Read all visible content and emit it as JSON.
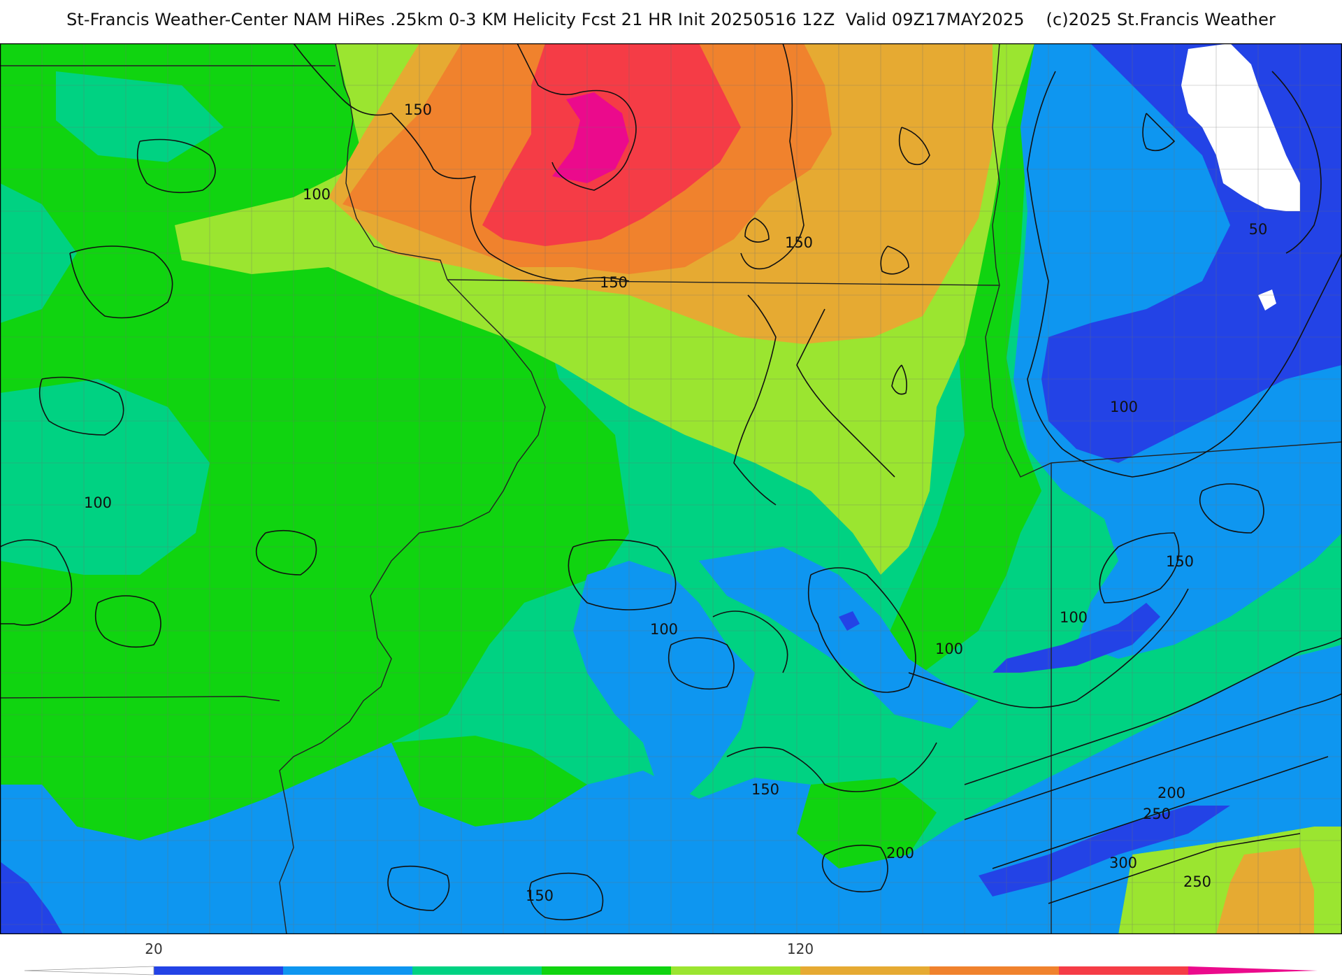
{
  "title": "St-Francis Weather-Center NAM HiRes .25km 0-3 KM Helicity Fcst 21 HR Init 20250516 12Z  Valid 09Z17MAY2025    (c)2025 St.Francis Weather",
  "colors": {
    "white": "#ffffff",
    "blue_dark": "#2343e6",
    "blue": "#0e96f0",
    "teal": "#00d282",
    "green": "#10d410",
    "lime": "#9be530",
    "gold": "#e6aa32",
    "orange": "#f0822d",
    "red": "#f53c46",
    "magenta": "#eb0a8c",
    "contour": "#111111",
    "border": "#555555"
  },
  "colorbar": {
    "tick_labels": [
      "20",
      "120"
    ],
    "bins": [
      "blue_dark",
      "blue",
      "teal",
      "green",
      "lime",
      "gold",
      "orange",
      "red"
    ]
  },
  "contour_labels": [
    {
      "text": "150"
    },
    {
      "text": "100"
    },
    {
      "text": "150"
    },
    {
      "text": "150"
    },
    {
      "text": "50"
    },
    {
      "text": "100"
    },
    {
      "text": "100"
    },
    {
      "text": "150"
    },
    {
      "text": "100"
    },
    {
      "text": "100"
    },
    {
      "text": "100"
    },
    {
      "text": "150"
    },
    {
      "text": "200"
    },
    {
      "text": "250"
    },
    {
      "text": "150"
    },
    {
      "text": "200"
    },
    {
      "text": "300"
    },
    {
      "text": "250"
    },
    {
      "text": "150"
    }
  ]
}
